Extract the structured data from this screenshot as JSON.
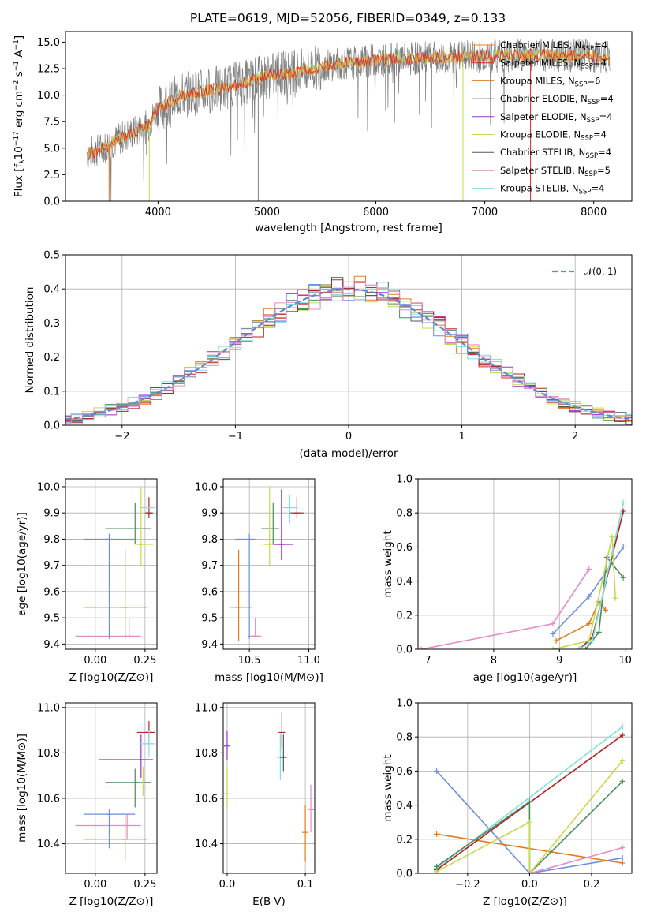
{
  "title": "PLATE=0619, MJD=52056, FIBERID=0349, z=0.133",
  "colors": [
    "#ff7f0e",
    "#d62728",
    "#e07b20",
    "#4a8c5a",
    "#9932cc",
    "#c8d84a",
    "#555555",
    "#b22222",
    "#7fdfe0",
    "#6a8fdf",
    "#e58ac8"
  ],
  "chart_data": [
    {
      "id": "spectrum",
      "type": "line",
      "xlabel": "wavelength [Angstrom, rest frame]",
      "ylabel": "Flux [f_λ10^-17 erg cm^-2 s^-1 A^-1]",
      "xlim": [
        3150,
        8350
      ],
      "ylim": [
        0,
        16
      ],
      "xticks": [
        "4000",
        "5000",
        "6000",
        "7000",
        "8000"
      ],
      "yticks": [
        "0.0",
        "2.5",
        "5.0",
        "7.5",
        "10.0",
        "12.5",
        "15.0"
      ],
      "ytick_values": [
        0,
        2.5,
        5,
        7.5,
        10,
        12.5,
        15
      ],
      "xtick_values": [
        4000,
        5000,
        6000,
        7000,
        8000
      ],
      "continuum": [
        [
          3350,
          4.5
        ],
        [
          3500,
          5.0
        ],
        [
          3700,
          6.2
        ],
        [
          3900,
          7.0
        ],
        [
          4000,
          8.7
        ],
        [
          4200,
          10.0
        ],
        [
          4500,
          10.5
        ],
        [
          4800,
          11.2
        ],
        [
          5000,
          11.8
        ],
        [
          5300,
          12.2
        ],
        [
          5600,
          12.9
        ],
        [
          6000,
          13.3
        ],
        [
          6500,
          13.5
        ],
        [
          7000,
          13.7
        ],
        [
          7500,
          13.8
        ],
        [
          8000,
          13.7
        ],
        [
          8150,
          13.5
        ]
      ],
      "legend": [
        {
          "label": "Chabrier MILES, N",
          "sub": "SSP",
          "value": "=4",
          "color": "#ff7f0e"
        },
        {
          "label": "Salpeter MILES, N",
          "sub": "SSP",
          "value": "=4",
          "color": "#d62728"
        },
        {
          "label": "Kroupa MILES, N",
          "sub": "SSP",
          "value": "=6",
          "color": "#e07b20"
        },
        {
          "label": "Chabrier ELODIE, N",
          "sub": "SSP",
          "value": "=4",
          "color": "#4a8c5a"
        },
        {
          "label": "Salpeter ELODIE, N",
          "sub": "SSP",
          "value": "=4",
          "color": "#9932cc"
        },
        {
          "label": "Kroupa ELODIE, N",
          "sub": "SSP",
          "value": "=4",
          "color": "#c8d84a"
        },
        {
          "label": "Chabrier STELIB, N",
          "sub": "SSP",
          "value": "=4",
          "color": "#555555"
        },
        {
          "label": "Salpeter STELIB, N",
          "sub": "SSP",
          "value": "=5",
          "color": "#b22222"
        },
        {
          "label": "Kroupa STELIB, N",
          "sub": "SSP",
          "value": "=4",
          "color": "#7fdfe0"
        }
      ]
    },
    {
      "id": "residuals",
      "type": "line",
      "xlabel": "(data-model)/error",
      "ylabel": "Normed distribution",
      "xlim": [
        -2.5,
        2.5
      ],
      "ylim": [
        0,
        0.5
      ],
      "xticks": [
        "−2",
        "−1",
        "0",
        "1",
        "2"
      ],
      "xtick_values": [
        -2,
        -1,
        0,
        1,
        2
      ],
      "yticks": [
        "0.0",
        "0.1",
        "0.2",
        "0.3",
        "0.4",
        "0.5"
      ],
      "ytick_values": [
        0,
        0.1,
        0.2,
        0.3,
        0.4,
        0.5
      ],
      "legend": [
        {
          "label": "𝒩(0, 1)",
          "color": "#5b8ad6"
        }
      ],
      "bin_width": 0.1
    },
    {
      "id": "age-vs-Z",
      "type": "scatter",
      "xlabel": "Z [log10(Z/Z⊙)]",
      "ylabel": "age  [log10(age/yr)]",
      "xlim": [
        -0.15,
        0.31
      ],
      "ylim": [
        9.38,
        10.03
      ],
      "xticks": [
        "0.00",
        "0.25"
      ],
      "xtick_values": [
        0,
        0.25
      ],
      "yticks": [
        "9.4",
        "9.5",
        "9.6",
        "9.7",
        "9.8",
        "9.9",
        "10.0"
      ],
      "ytick_values": [
        9.4,
        9.5,
        9.6,
        9.7,
        9.8,
        9.9,
        10.0
      ]
    },
    {
      "id": "age-vs-mass",
      "type": "scatter",
      "xlabel": "mass [log10(M/M⊙)]",
      "ylabel": "",
      "xlim": [
        10.28,
        11.05
      ],
      "ylim": [
        9.38,
        10.03
      ],
      "xticks": [
        "10.5",
        "11.0"
      ],
      "xtick_values": [
        10.5,
        11.0
      ],
      "yticks": [
        "9.4",
        "9.5",
        "9.6",
        "9.7",
        "9.8",
        "9.9",
        "10.0"
      ],
      "ytick_values": [
        9.4,
        9.5,
        9.6,
        9.7,
        9.8,
        9.9,
        10.0
      ]
    },
    {
      "id": "massweight-vs-age",
      "type": "line",
      "xlabel": "age  [log10(age/yr)]",
      "ylabel": "mass weight",
      "xlim": [
        6.85,
        10.1
      ],
      "ylim": [
        0,
        1
      ],
      "xticks": [
        "7",
        "8",
        "9",
        "10"
      ],
      "xtick_values": [
        7,
        8,
        9,
        10
      ],
      "yticks": [
        "0.0",
        "0.2",
        "0.4",
        "0.6",
        "0.8",
        "1.0"
      ],
      "ytick_values": [
        0,
        0.2,
        0.4,
        0.6,
        0.8,
        1.0
      ],
      "series": [
        {
          "color": "#e58ac8",
          "points": [
            [
              6.9,
              0.0
            ],
            [
              8.9,
              0.15
            ],
            [
              9.45,
              0.47
            ]
          ]
        },
        {
          "color": "#6a8fdf",
          "points": [
            [
              8.9,
              0.09
            ],
            [
              9.45,
              0.31
            ],
            [
              9.97,
              0.6
            ]
          ]
        },
        {
          "color": "#e07b20",
          "points": [
            [
              8.95,
              0.05
            ],
            [
              9.45,
              0.15
            ],
            [
              9.6,
              0.28
            ],
            [
              9.7,
              0.23
            ]
          ]
        },
        {
          "color": "#b22222",
          "points": [
            [
              9.3,
              0.0
            ],
            [
              9.5,
              0.07
            ],
            [
              9.97,
              0.81
            ]
          ]
        },
        {
          "color": "#4a8c5a",
          "points": [
            [
              9.4,
              0.0
            ],
            [
              9.6,
              0.1
            ],
            [
              9.72,
              0.54
            ],
            [
              9.97,
              0.42
            ]
          ]
        },
        {
          "color": "#c8d84a",
          "points": [
            [
              8.9,
              0.0
            ],
            [
              9.45,
              0.05
            ],
            [
              9.8,
              0.66
            ],
            [
              9.85,
              0.3
            ]
          ]
        },
        {
          "color": "#7fdfe0",
          "points": [
            [
              9.3,
              0.0
            ],
            [
              9.5,
              0.05
            ],
            [
              9.97,
              0.86
            ]
          ]
        }
      ]
    },
    {
      "id": "mass-vs-Z",
      "type": "scatter",
      "xlabel": "Z [log10(Z/Z⊙)]",
      "ylabel": "mass [log10(M/M⊙)]",
      "xlim": [
        -0.15,
        0.31
      ],
      "ylim": [
        10.27,
        11.02
      ],
      "xticks": [
        "0.00",
        "0.25"
      ],
      "xtick_values": [
        0,
        0.25
      ],
      "yticks": [
        "10.4",
        "10.6",
        "10.8",
        "11.0"
      ],
      "ytick_values": [
        10.4,
        10.6,
        10.8,
        11.0
      ]
    },
    {
      "id": "mass-vs-EBV",
      "type": "scatter",
      "xlabel": "E(B-V)",
      "ylabel": "",
      "xlim": [
        -0.005,
        0.112
      ],
      "ylim": [
        10.27,
        11.02
      ],
      "xticks": [
        "0.0",
        "0.1"
      ],
      "xtick_values": [
        0,
        0.1
      ],
      "yticks": [
        "10.4",
        "10.6",
        "10.8",
        "11.0"
      ],
      "ytick_values": [
        10.4,
        10.6,
        10.8,
        11.0
      ]
    },
    {
      "id": "massweight-vs-Z",
      "type": "line",
      "xlabel": "Z [log10(Z/Z⊙)]",
      "ylabel": "mass weight",
      "xlim": [
        -0.36,
        0.33
      ],
      "ylim": [
        0,
        1
      ],
      "xticks": [
        "−0.2",
        "0.0",
        "0.2"
      ],
      "xtick_values": [
        -0.2,
        0,
        0.2
      ],
      "yticks": [
        "0.0",
        "0.2",
        "0.4",
        "0.6",
        "0.8",
        "1.0"
      ],
      "ytick_values": [
        0,
        0.2,
        0.4,
        0.6,
        0.8,
        1.0
      ],
      "series": [
        {
          "color": "#6a8fdf",
          "points": [
            [
              -0.3,
              0.6
            ],
            [
              0.0,
              0.0
            ],
            [
              0.3,
              0.09
            ]
          ]
        },
        {
          "color": "#e07b20",
          "points": [
            [
              -0.3,
              0.23
            ],
            [
              0.3,
              0.06
            ]
          ]
        },
        {
          "color": "#7fdfe0",
          "points": [
            [
              -0.3,
              0.03
            ],
            [
              0.3,
              0.86
            ]
          ]
        },
        {
          "color": "#b22222",
          "points": [
            [
              -0.3,
              0.02
            ],
            [
              0.3,
              0.81
            ]
          ]
        },
        {
          "color": "#4a8c5a",
          "points": [
            [
              -0.3,
              0.04
            ],
            [
              0.0,
              0.42
            ],
            [
              0.0,
              0.0
            ],
            [
              0.3,
              0.54
            ]
          ]
        },
        {
          "color": "#c8d84a",
          "points": [
            [
              -0.3,
              0.01
            ],
            [
              0.0,
              0.3
            ],
            [
              0.0,
              0.0
            ],
            [
              0.3,
              0.66
            ]
          ]
        },
        {
          "color": "#e58ac8",
          "points": [
            [
              0.0,
              0.0
            ],
            [
              0.3,
              0.15
            ]
          ]
        }
      ]
    }
  ],
  "errorbars": {
    "ageZ": [
      {
        "c": "#e58ac8",
        "x": 0.17,
        "y": 9.43,
        "xe": [
          -0.1,
          0.23
        ],
        "ye": [
          9.43,
          9.5
        ]
      },
      {
        "c": "#e07b20",
        "x": 0.15,
        "y": 9.54,
        "xe": [
          -0.06,
          0.26
        ],
        "ye": [
          9.42,
          9.76
        ]
      },
      {
        "c": "#6a8fdf",
        "x": 0.07,
        "y": 9.8,
        "xe": [
          -0.06,
          0.2
        ],
        "ye": [
          9.42,
          9.82
        ]
      },
      {
        "c": "#4a8c5a",
        "x": 0.2,
        "y": 9.84,
        "xe": [
          0.05,
          0.28
        ],
        "ye": [
          9.78,
          9.94
        ]
      },
      {
        "c": "#c8d84a",
        "x": 0.23,
        "y": 9.78,
        "xe": [
          0.2,
          0.29
        ],
        "ye": [
          9.7,
          10.0
        ]
      },
      {
        "c": "#b22222",
        "x": 0.27,
        "y": 9.9,
        "xe": [
          0.25,
          0.29
        ],
        "ye": [
          9.88,
          9.96
        ]
      },
      {
        "c": "#7fdfe0",
        "x": 0.26,
        "y": 9.92,
        "xe": [
          0.23,
          0.3
        ],
        "ye": [
          9.88,
          9.96
        ]
      }
    ],
    "ageM": [
      {
        "c": "#e58ac8",
        "x": 10.55,
        "y": 9.43,
        "xe": [
          10.49,
          10.6
        ],
        "ye": [
          9.43,
          9.5
        ]
      },
      {
        "c": "#e07b20",
        "x": 10.41,
        "y": 9.54,
        "xe": [
          10.33,
          10.52
        ],
        "ye": [
          9.41,
          9.76
        ]
      },
      {
        "c": "#6a8fdf",
        "x": 10.5,
        "y": 9.8,
        "xe": [
          10.38,
          10.55
        ],
        "ye": [
          9.42,
          9.82
        ]
      },
      {
        "c": "#4a8c5a",
        "x": 10.7,
        "y": 9.84,
        "xe": [
          10.6,
          10.75
        ],
        "ye": [
          9.78,
          9.94
        ]
      },
      {
        "c": "#c8d84a",
        "x": 10.67,
        "y": 9.78,
        "xe": [
          10.62,
          10.74
        ],
        "ye": [
          9.7,
          10.0
        ]
      },
      {
        "c": "#9932cc",
        "x": 10.77,
        "y": 9.78,
        "xe": [
          10.7,
          10.87
        ],
        "ye": [
          9.72,
          9.99
        ]
      },
      {
        "c": "#b22222",
        "x": 10.9,
        "y": 9.9,
        "xe": [
          10.84,
          10.96
        ],
        "ye": [
          9.88,
          9.96
        ]
      },
      {
        "c": "#7fdfe0",
        "x": 10.84,
        "y": 9.92,
        "xe": [
          10.78,
          10.91
        ],
        "ye": [
          9.86,
          9.97
        ]
      }
    ],
    "massZ": [
      {
        "c": "#e58ac8",
        "x": 0.16,
        "y": 10.48,
        "xe": [
          -0.1,
          0.23
        ],
        "ye": [
          10.42,
          10.53
        ]
      },
      {
        "c": "#e07b20",
        "x": 0.15,
        "y": 10.42,
        "xe": [
          -0.06,
          0.26
        ],
        "ye": [
          10.32,
          10.52
        ]
      },
      {
        "c": "#6a8fdf",
        "x": 0.07,
        "y": 10.53,
        "xe": [
          -0.06,
          0.2
        ],
        "ye": [
          10.38,
          10.55
        ]
      },
      {
        "c": "#4a8c5a",
        "x": 0.2,
        "y": 10.67,
        "xe": [
          0.05,
          0.28
        ],
        "ye": [
          10.56,
          10.73
        ]
      },
      {
        "c": "#c8d84a",
        "x": 0.24,
        "y": 10.65,
        "xe": [
          0.05,
          0.29
        ],
        "ye": [
          10.61,
          10.74
        ]
      },
      {
        "c": "#9932cc",
        "x": 0.23,
        "y": 10.77,
        "xe": [
          0.02,
          0.29
        ],
        "ye": [
          10.69,
          10.88
        ]
      },
      {
        "c": "#b22222",
        "x": 0.27,
        "y": 10.89,
        "xe": [
          0.21,
          0.3
        ],
        "ye": [
          10.84,
          10.94
        ]
      },
      {
        "c": "#7fdfe0",
        "x": 0.27,
        "y": 10.84,
        "xe": [
          0.22,
          0.3
        ],
        "ye": [
          10.78,
          10.9
        ]
      }
    ],
    "massE": [
      {
        "c": "#9932cc",
        "x": 0.0,
        "y": 10.83,
        "ye": [
          10.77,
          10.9
        ]
      },
      {
        "c": "#c8d84a",
        "x": 0.0,
        "y": 10.62,
        "ye": [
          10.55,
          10.74
        ]
      },
      {
        "c": "#b22222",
        "x": 0.07,
        "y": 10.89,
        "ye": [
          10.82,
          10.98
        ]
      },
      {
        "c": "#7fdfe0",
        "x": 0.068,
        "y": 10.78,
        "ye": [
          10.68,
          10.88
        ]
      },
      {
        "c": "#555555",
        "x": 0.072,
        "y": 10.78,
        "ye": [
          10.72,
          10.88
        ]
      },
      {
        "c": "#e07b20",
        "x": 0.1,
        "y": 10.45,
        "ye": [
          10.32,
          10.57
        ]
      },
      {
        "c": "#e58ac8",
        "x": 0.107,
        "y": 10.55,
        "ye": [
          10.45,
          10.66
        ]
      }
    ]
  }
}
